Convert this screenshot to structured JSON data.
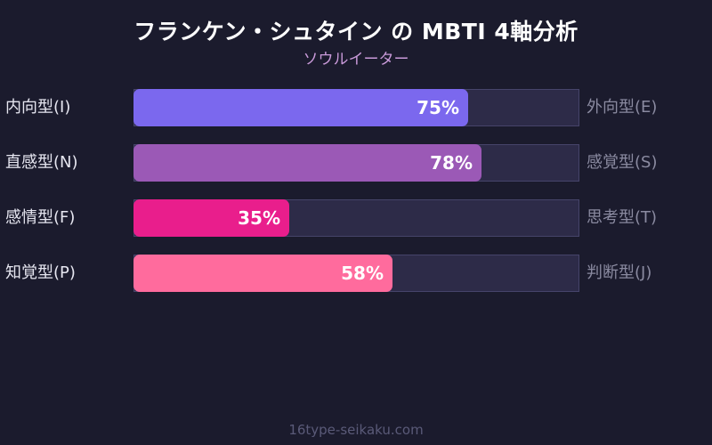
{
  "header": {
    "title": "フランケン・シュタイン の MBTI 4軸分析",
    "subtitle": "ソウルイーター"
  },
  "footer": {
    "site": "16type-seikaku.com"
  },
  "axes": [
    {
      "left": "内向型(I)",
      "right": "外向型(E)",
      "value": 75,
      "label": "75%",
      "color": "#7b68ee"
    },
    {
      "left": "直感型(N)",
      "right": "感覚型(S)",
      "value": 78,
      "label": "78%",
      "color": "#9b59b6"
    },
    {
      "left": "感情型(F)",
      "right": "思考型(T)",
      "value": 35,
      "label": "35%",
      "color": "#e91e8c"
    },
    {
      "left": "知覚型(P)",
      "right": "判断型(J)",
      "value": 58,
      "label": "58%",
      "color": "#ff6b9d"
    }
  ],
  "chart_data": {
    "type": "bar",
    "orientation": "horizontal",
    "title": "フランケン・シュタイン の MBTI 4軸分析",
    "subtitle": "ソウルイーター",
    "categories": [
      "内向型(I) / 外向型(E)",
      "直感型(N) / 感覚型(S)",
      "感情型(F) / 思考型(T)",
      "知覚型(P) / 判断型(J)"
    ],
    "left_labels": [
      "内向型(I)",
      "直感型(N)",
      "感情型(F)",
      "知覚型(P)"
    ],
    "right_labels": [
      "外向型(E)",
      "感覚型(S)",
      "思考型(T)",
      "判断型(J)"
    ],
    "values": [
      75,
      78,
      35,
      58
    ],
    "colors": [
      "#7b68ee",
      "#9b59b6",
      "#e91e8c",
      "#ff6b9d"
    ],
    "xlim": [
      0,
      100
    ],
    "unit": "%",
    "grid": false,
    "legend": false
  }
}
